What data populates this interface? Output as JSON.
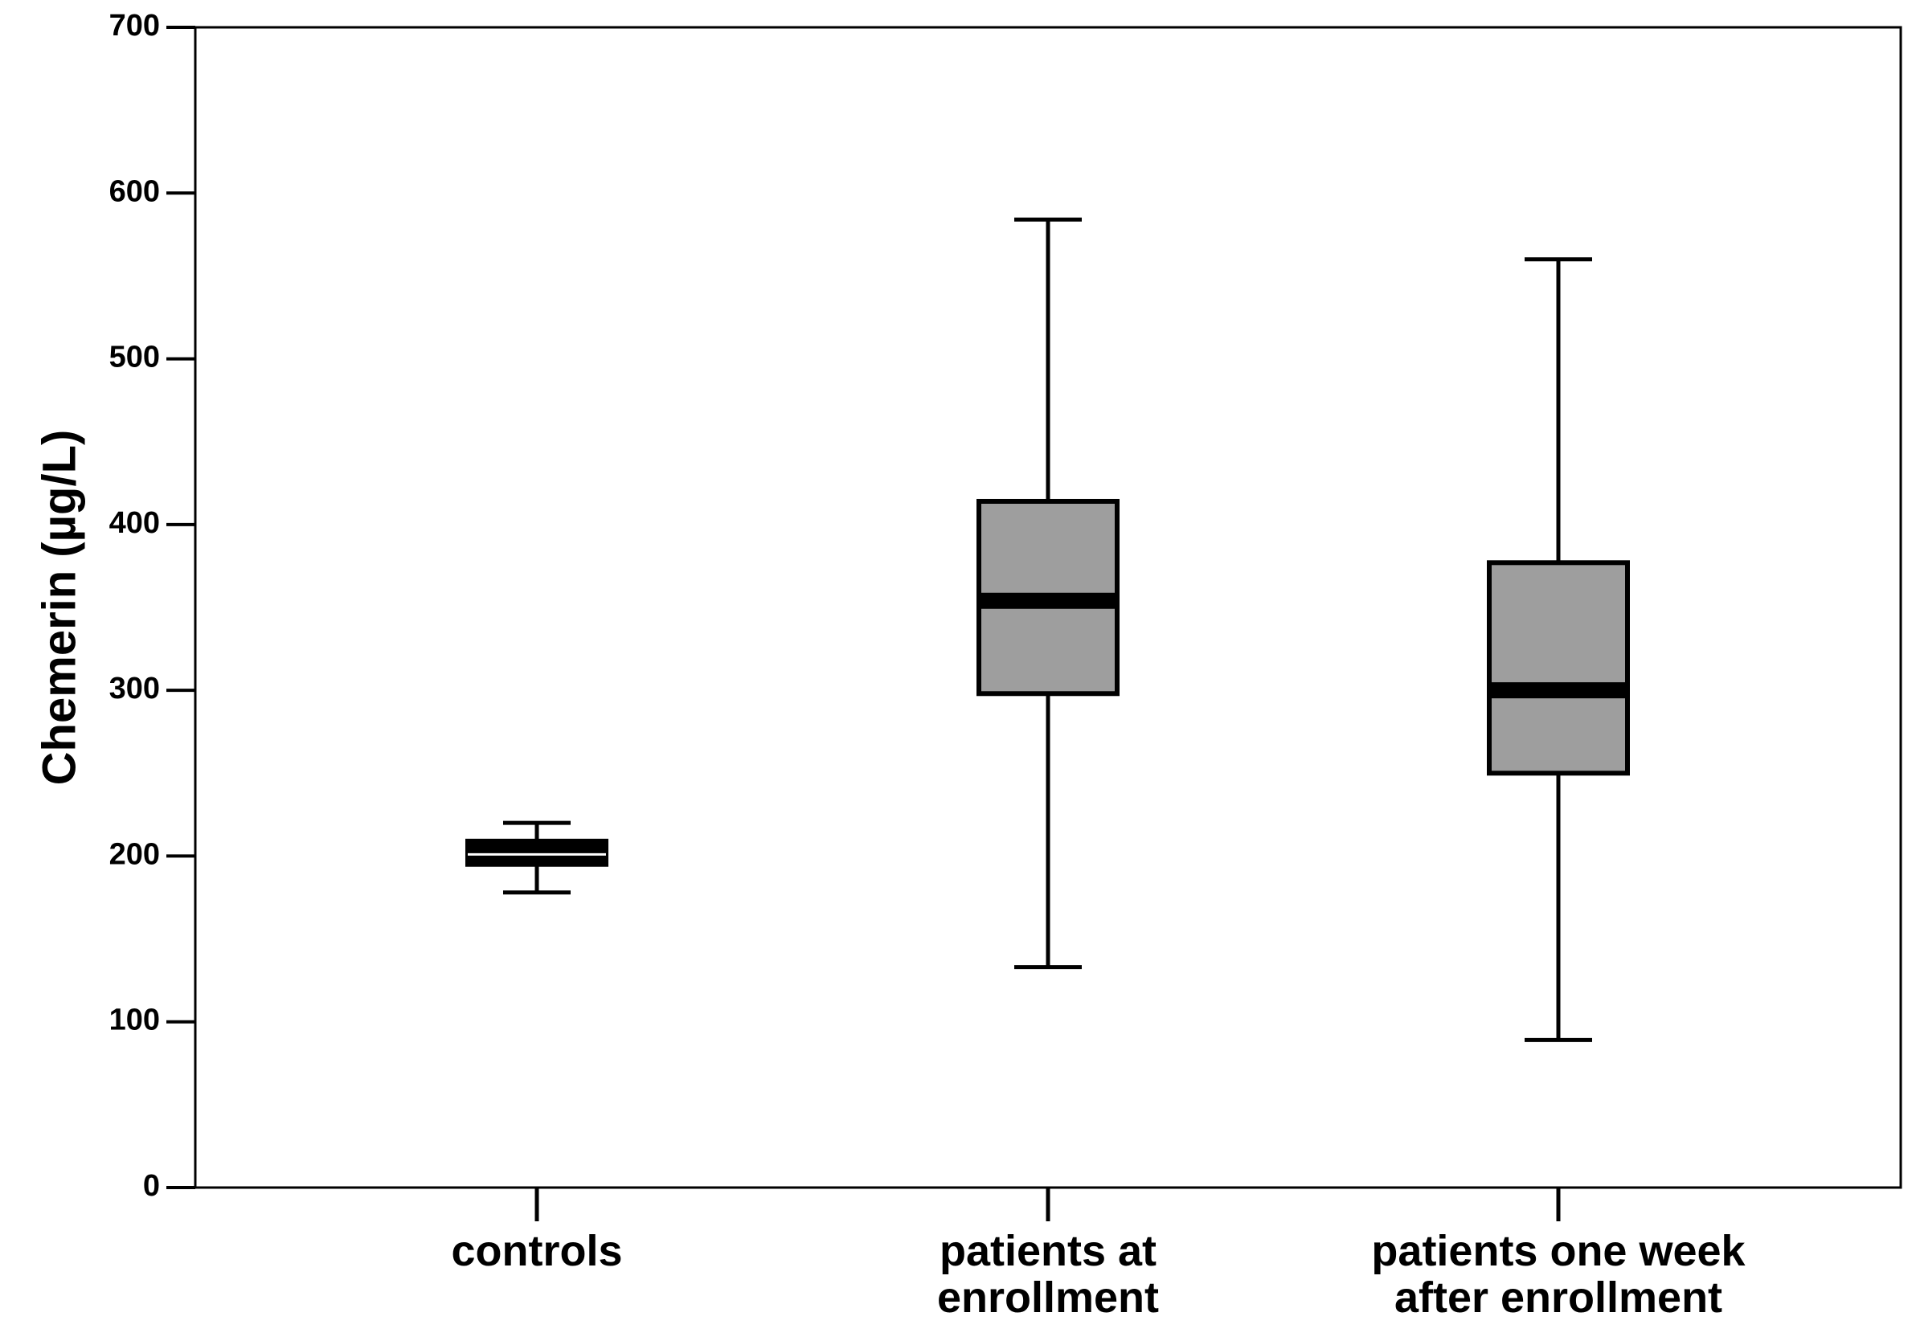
{
  "chart_data": {
    "type": "box",
    "ylabel": "Chemerin (µg/L)",
    "xlabel": "",
    "ylim": [
      0,
      700
    ],
    "yticks": [
      "0",
      "100",
      "200",
      "300",
      "400",
      "500",
      "600",
      "700"
    ],
    "grid": false,
    "categories": [
      [
        "controls"
      ],
      [
        "patients at",
        "enrollment"
      ],
      [
        "patients one week",
        "after enrollment"
      ]
    ],
    "boxes": [
      {
        "min": 178,
        "q1": 195,
        "median": 201,
        "q3": 209,
        "max": 220
      },
      {
        "min": 133,
        "q1": 298,
        "median": 354,
        "q3": 414,
        "max": 584
      },
      {
        "min": 89,
        "q1": 250,
        "median": 300,
        "q3": 377,
        "max": 560
      }
    ],
    "colors": {
      "box_fill": "#9e9e9e",
      "line": "#000000",
      "background": "#ffffff"
    }
  }
}
